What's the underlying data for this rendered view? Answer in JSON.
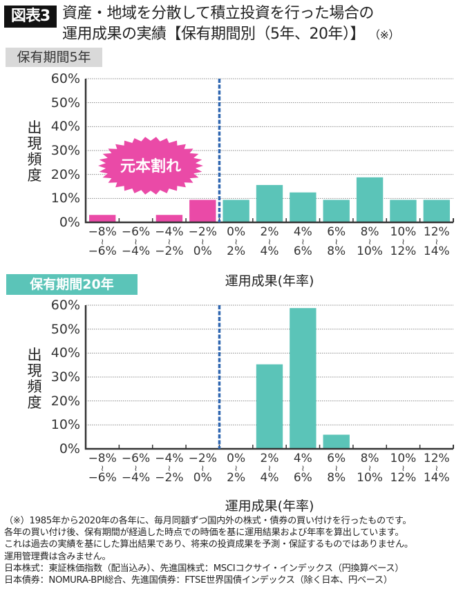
{
  "header": {
    "figure_label": "図表3",
    "title_line1": "資産・地域を分散して積立投資を行った場合の",
    "title_line2": "運用成果の実績【保有期間別（5年、20年）】",
    "title_note": "（※）"
  },
  "colors": {
    "loss_bar": "#ea4aa7",
    "gain_bar": "#5bc4b8",
    "breakeven_line": "#2f66b0",
    "axis": "#333333",
    "grid": "#888888",
    "badge_gray": "#d9d9d9",
    "badge_teal": "#5bc4b8"
  },
  "sections": [
    {
      "badge": "保有期間5年",
      "ylabel": "出現頻度",
      "xtitle": "運用成果(年率)",
      "callout": "元本割れ"
    },
    {
      "badge": "保有期間20年",
      "ylabel": "出現頻度",
      "xtitle": "運用成果(年率)"
    }
  ],
  "axis": {
    "yticks": [
      "60%",
      "50%",
      "40%",
      "30%",
      "20%",
      "10%",
      "0%"
    ],
    "xticks": [
      {
        "from": "−8%",
        "to": "−6%"
      },
      {
        "from": "−6%",
        "to": "−4%"
      },
      {
        "from": "−4%",
        "to": "−2%"
      },
      {
        "from": "−2%",
        "to": "0%"
      },
      {
        "from": "0%",
        "to": "2%"
      },
      {
        "from": "2%",
        "to": "4%"
      },
      {
        "from": "4%",
        "to": "6%"
      },
      {
        "from": "6%",
        "to": "8%"
      },
      {
        "from": "8%",
        "to": "10%"
      },
      {
        "from": "10%",
        "to": "12%"
      },
      {
        "from": "12%",
        "to": "14%"
      }
    ],
    "tilde": "≀"
  },
  "chart_data": [
    {
      "type": "bar",
      "title": "保有期間5年",
      "xlabel": "運用成果(年率)",
      "ylabel": "出現頻度",
      "ylim": [
        0,
        60
      ],
      "yticks": [
        0,
        10,
        20,
        30,
        40,
        50,
        60
      ],
      "grid": true,
      "categories": [
        "-8%~-6%",
        "-6%~-4%",
        "-4%~-2%",
        "-2%~0%",
        "0%~2%",
        "2%~4%",
        "4%~6%",
        "6%~8%",
        "8%~10%",
        "10%~12%",
        "12%~14%"
      ],
      "values": [
        3.1,
        0,
        3.1,
        9.4,
        9.4,
        15.6,
        12.5,
        9.4,
        18.8,
        9.4,
        9.4
      ],
      "bar_colors": [
        "loss",
        "loss",
        "loss",
        "loss",
        "gain",
        "gain",
        "gain",
        "gain",
        "gain",
        "gain",
        "gain"
      ],
      "annotations": [
        {
          "text": "元本割れ",
          "target": "negative returns (bars left of 0%)"
        }
      ],
      "reference_line": {
        "x": "0%",
        "style": "dashed",
        "color": "#2f66b0"
      }
    },
    {
      "type": "bar",
      "title": "保有期間20年",
      "xlabel": "運用成果(年率)",
      "ylabel": "出現頻度",
      "ylim": [
        0,
        60
      ],
      "yticks": [
        0,
        10,
        20,
        30,
        40,
        50,
        60
      ],
      "grid": true,
      "categories": [
        "-8%~-6%",
        "-6%~-4%",
        "-4%~-2%",
        "-2%~0%",
        "0%~2%",
        "2%~4%",
        "4%~6%",
        "6%~8%",
        "8%~10%",
        "10%~12%",
        "12%~14%"
      ],
      "values": [
        0,
        0,
        0,
        0,
        0,
        35.3,
        58.8,
        5.9,
        0,
        0,
        0
      ],
      "bar_colors": [
        "loss",
        "loss",
        "loss",
        "loss",
        "gain",
        "gain",
        "gain",
        "gain",
        "gain",
        "gain",
        "gain"
      ],
      "reference_line": {
        "x": "0%",
        "style": "dashed",
        "color": "#2f66b0"
      }
    }
  ],
  "footnotes": [
    "（※）1985年から2020年の各年に、毎月同額ずつ国内外の株式・債券の買い付けを行ったものです。",
    "各年の買い付け後、保有期間が経過した時点での時価を基に運用結果および年率を算出しています。",
    "これは過去の実績を基にした算出結果であり、将来の投資成果を予測・保証するものではありません。",
    "運用管理費は含みません。",
    "日本株式：東証株価指数（配当込み）、先進国株式：MSCIコクサイ・インデックス（円換算ベース）",
    "日本債券：NOMURA-BPI総合、先進国債券：FTSE世界国債インデックス（除く日本、円ベース）"
  ]
}
